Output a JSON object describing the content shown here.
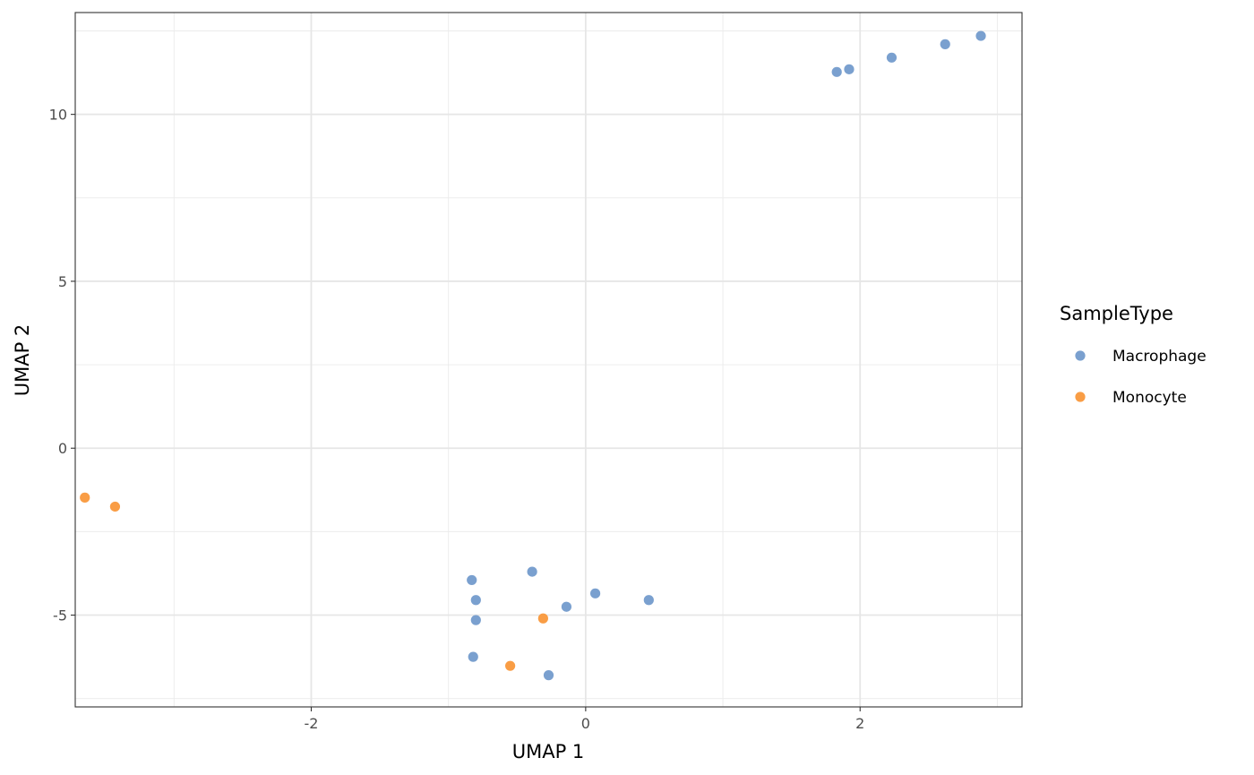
{
  "chart_data": {
    "type": "scatter",
    "title": "",
    "xlabel": "UMAP 1",
    "ylabel": "UMAP 2",
    "xlim": [
      -3.72,
      3.18
    ],
    "ylim": [
      -7.75,
      13.05
    ],
    "x_ticks": [
      -2,
      0,
      2
    ],
    "x_minor_ticks": [
      -3,
      -1,
      1,
      3
    ],
    "y_ticks": [
      -5,
      0,
      5,
      10
    ],
    "y_minor_ticks": [
      -7.5,
      -2.5,
      2.5,
      7.5,
      12.5
    ],
    "grid": true,
    "legend": {
      "title": "SampleType",
      "position": "right"
    },
    "series": [
      {
        "name": "Macrophage",
        "color": "#7aa0cf",
        "points": [
          [
            1.83,
            11.27
          ],
          [
            1.92,
            11.35
          ],
          [
            2.23,
            11.7
          ],
          [
            2.62,
            12.1
          ],
          [
            2.88,
            12.35
          ],
          [
            -0.83,
            -3.95
          ],
          [
            -0.39,
            -3.7
          ],
          [
            -0.8,
            -4.55
          ],
          [
            0.07,
            -4.35
          ],
          [
            0.46,
            -4.55
          ],
          [
            -0.14,
            -4.75
          ],
          [
            -0.8,
            -5.15
          ],
          [
            -0.82,
            -6.25
          ],
          [
            -0.27,
            -6.8
          ]
        ]
      },
      {
        "name": "Monocyte",
        "color": "#f99d45",
        "points": [
          [
            -3.65,
            -1.48
          ],
          [
            -3.43,
            -1.75
          ],
          [
            -0.31,
            -5.1
          ],
          [
            -0.55,
            -6.52
          ]
        ]
      }
    ]
  }
}
